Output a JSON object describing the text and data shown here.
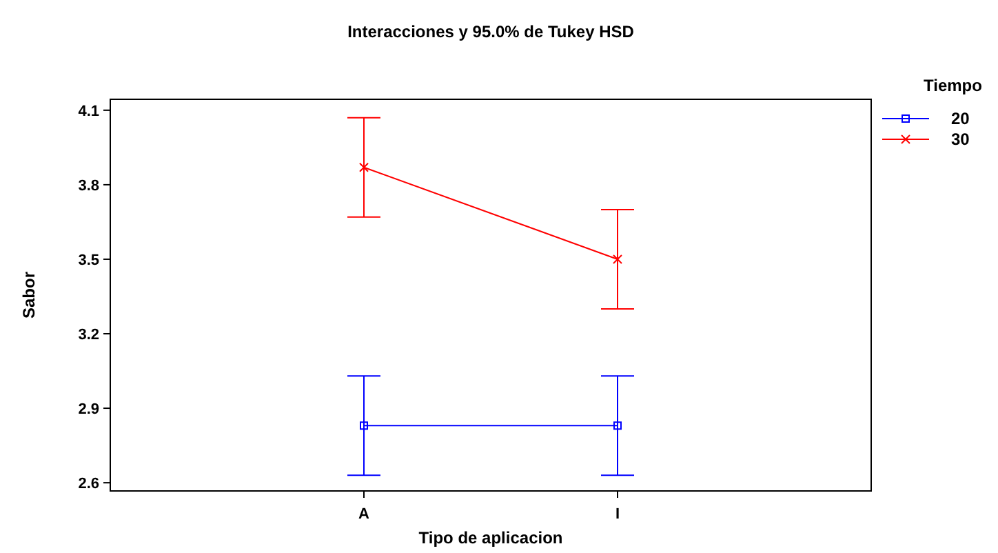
{
  "chart_data": {
    "type": "line",
    "title": "Interacciones y 95.0% de Tukey HSD",
    "xlabel": "Tipo de aplicacion",
    "ylabel": "Sabor",
    "legend_title": "Tiempo",
    "legend": "top right",
    "categories": [
      "A",
      "I"
    ],
    "ylim": [
      2.567,
      4.144
    ],
    "yticks": [
      2.6,
      2.9,
      3.2,
      3.5,
      3.8,
      4.1
    ],
    "grid": false,
    "series": [
      {
        "name": "20",
        "color": "#0000ff",
        "marker": "square",
        "values": [
          2.83,
          2.83
        ],
        "errors": [
          [
            2.63,
            3.03
          ],
          [
            2.63,
            3.03
          ]
        ]
      },
      {
        "name": "30",
        "color": "#ff0000",
        "marker": "cross",
        "values": [
          3.87,
          3.5
        ],
        "errors": [
          [
            3.67,
            4.07
          ],
          [
            3.3,
            3.7
          ]
        ]
      }
    ]
  }
}
